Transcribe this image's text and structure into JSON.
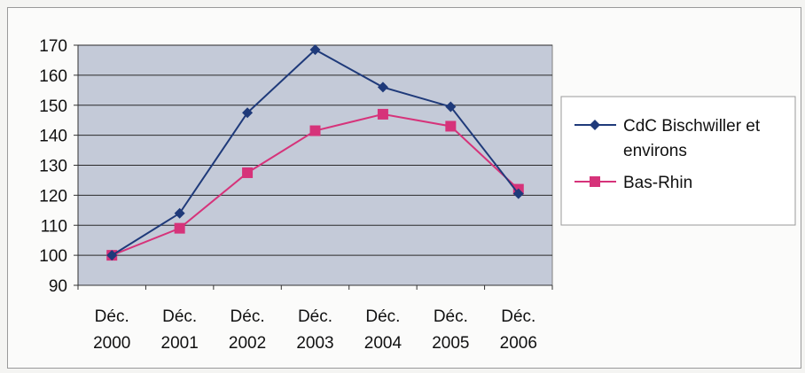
{
  "chart_data": {
    "type": "line",
    "categories": [
      [
        "Déc.",
        "2000"
      ],
      [
        "Déc.",
        "2001"
      ],
      [
        "Déc.",
        "2002"
      ],
      [
        "Déc.",
        "2003"
      ],
      [
        "Déc.",
        "2004"
      ],
      [
        "Déc.",
        "2005"
      ],
      [
        "Déc.",
        "2006"
      ]
    ],
    "ylim": [
      90,
      170
    ],
    "yticks": [
      90,
      100,
      110,
      120,
      130,
      140,
      150,
      160,
      170
    ],
    "grid": true,
    "legend_position": "right",
    "plot_background": "#c4cad8",
    "series": [
      {
        "name": [
          "CdC Bischwiller et",
          "environs"
        ],
        "color": "#1f3a7a",
        "marker": "diamond",
        "values": [
          100,
          114,
          147.5,
          168.5,
          156,
          149.5,
          120.5
        ]
      },
      {
        "name": [
          "Bas-Rhin"
        ],
        "color": "#d6337a",
        "marker": "square",
        "values": [
          100,
          109,
          127.5,
          141.5,
          147,
          143,
          122
        ]
      }
    ]
  }
}
